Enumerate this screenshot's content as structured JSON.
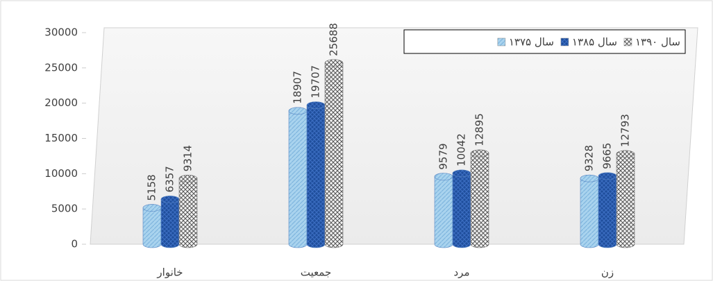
{
  "chart_data": {
    "type": "bar",
    "categories": [
      "خانوار",
      "جمعیت",
      "مرد",
      "زن"
    ],
    "series": [
      {
        "name": "سال ۱۳۷۵",
        "color": "#a9d3ee",
        "values": [
          5158,
          18907,
          9579,
          9328
        ]
      },
      {
        "name": "سال ۱۳۸۵",
        "color": "#1f4e9c",
        "values": [
          6357,
          19707,
          10042,
          9665
        ]
      },
      {
        "name": "سال ۱۳۹۰",
        "color": "#e8e8e8",
        "values": [
          9314,
          25688,
          12895,
          12793
        ]
      }
    ],
    "ylim": [
      0,
      30000
    ],
    "yticks": [
      0,
      5000,
      10000,
      15000,
      20000,
      25000,
      30000
    ],
    "grid": false,
    "legend": "top-right",
    "data_labels": true
  }
}
